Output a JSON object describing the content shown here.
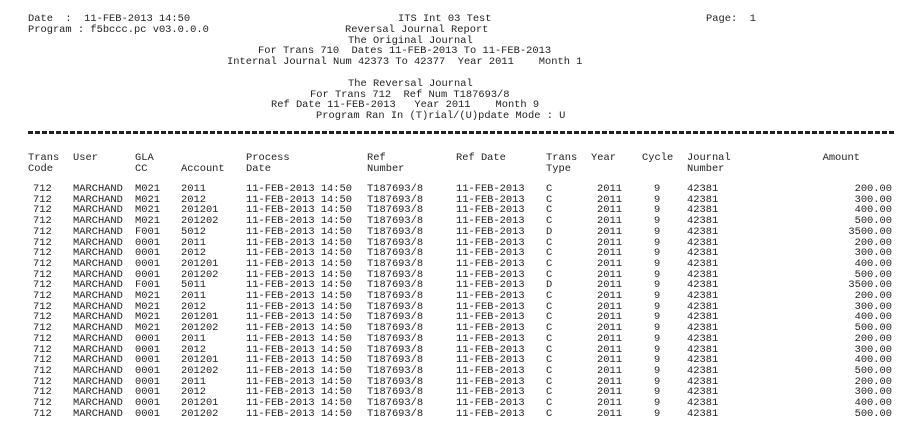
{
  "header": {
    "date": "Date  :  11-FEB-2013 14:50",
    "program": "Program : f5bccc.pc v03.0.0.0",
    "system": "ITS Int 03 Test",
    "page": "Page:  1",
    "title": "Reversal Journal Report",
    "original_heading": "The Original Journal",
    "original_trans": "For Trans 710  Dates 11-FEB-2013 To 11-FEB-2013",
    "original_internal": "Internal Journal Num 42373 To 42377  Year 2011    Month 1",
    "reversal_heading": "The Reversal Journal",
    "reversal_trans": "For Trans 712  Ref Num T187693/8",
    "reversal_refdate": "Ref Date 11-FEB-2013   Year 2011    Month 9",
    "mode": "Program Ran In (T)rial/(U)pdate Mode : U"
  },
  "columns": [
    {
      "l1": "Trans",
      "l2": "Code"
    },
    {
      "l1": "User",
      "l2": ""
    },
    {
      "l1": "GLA",
      "l2": "CC"
    },
    {
      "l1": "",
      "l2": "Account"
    },
    {
      "l1": "Process",
      "l2": "Date"
    },
    {
      "l1": "Ref",
      "l2": "Number"
    },
    {
      "l1": "Ref Date",
      "l2": ""
    },
    {
      "l1": "Trans",
      "l2": "Type"
    },
    {
      "l1": "Year",
      "l2": ""
    },
    {
      "l1": "Cycle",
      "l2": ""
    },
    {
      "l1": "Journal",
      "l2": "Number"
    },
    {
      "l1": "Amount",
      "l2": ""
    }
  ],
  "rows": [
    [
      "712",
      "MARCHAND",
      "M021",
      "2011",
      "11-FEB-2013 14:50",
      "T187693/8",
      "11-FEB-2013",
      "C",
      "2011",
      "9",
      "42381",
      "200.00"
    ],
    [
      "712",
      "MARCHAND",
      "M021",
      "2012",
      "11-FEB-2013 14:50",
      "T187693/8",
      "11-FEB-2013",
      "C",
      "2011",
      "9",
      "42381",
      "300.00"
    ],
    [
      "712",
      "MARCHAND",
      "M021",
      "201201",
      "11-FEB-2013 14:50",
      "T187693/8",
      "11-FEB-2013",
      "C",
      "2011",
      "9",
      "42381",
      "400.00"
    ],
    [
      "712",
      "MARCHAND",
      "M021",
      "201202",
      "11-FEB-2013 14:50",
      "T187693/8",
      "11-FEB-2013",
      "C",
      "2011",
      "9",
      "42381",
      "500.00"
    ],
    [
      "712",
      "MARCHAND",
      "F001",
      "5012",
      "11-FEB-2013 14:50",
      "T187693/8",
      "11-FEB-2013",
      "D",
      "2011",
      "9",
      "42381",
      "3500.00"
    ],
    [
      "712",
      "MARCHAND",
      "0001",
      "2011",
      "11-FEB-2013 14:50",
      "T187693/8",
      "11-FEB-2013",
      "C",
      "2011",
      "9",
      "42381",
      "200.00"
    ],
    [
      "712",
      "MARCHAND",
      "0001",
      "2012",
      "11-FEB-2013 14:50",
      "T187693/8",
      "11-FEB-2013",
      "C",
      "2011",
      "9",
      "42381",
      "300.00"
    ],
    [
      "712",
      "MARCHAND",
      "0001",
      "201201",
      "11-FEB-2013 14:50",
      "T187693/8",
      "11-FEB-2013",
      "C",
      "2011",
      "9",
      "42381",
      "400.00"
    ],
    [
      "712",
      "MARCHAND",
      "0001",
      "201202",
      "11-FEB-2013 14:50",
      "T187693/8",
      "11-FEB-2013",
      "C",
      "2011",
      "9",
      "42381",
      "500.00"
    ],
    [
      "712",
      "MARCHAND",
      "F001",
      "5011",
      "11-FEB-2013 14:50",
      "T187693/8",
      "11-FEB-2013",
      "D",
      "2011",
      "9",
      "42381",
      "3500.00"
    ],
    [
      "712",
      "MARCHAND",
      "M021",
      "2011",
      "11-FEB-2013 14:50",
      "T187693/8",
      "11-FEB-2013",
      "C",
      "2011",
      "9",
      "42381",
      "200.00"
    ],
    [
      "712",
      "MARCHAND",
      "M021",
      "2012",
      "11-FEB-2013 14:50",
      "T187693/8",
      "11-FEB-2013",
      "C",
      "2011",
      "9",
      "42381",
      "300.00"
    ],
    [
      "712",
      "MARCHAND",
      "M021",
      "201201",
      "11-FEB-2013 14:50",
      "T187693/8",
      "11-FEB-2013",
      "C",
      "2011",
      "9",
      "42381",
      "400.00"
    ],
    [
      "712",
      "MARCHAND",
      "M021",
      "201202",
      "11-FEB-2013 14:50",
      "T187693/8",
      "11-FEB-2013",
      "C",
      "2011",
      "9",
      "42381",
      "500.00"
    ],
    [
      "712",
      "MARCHAND",
      "0001",
      "2011",
      "11-FEB-2013 14:50",
      "T187693/8",
      "11-FEB-2013",
      "C",
      "2011",
      "9",
      "42381",
      "200.00"
    ],
    [
      "712",
      "MARCHAND",
      "0001",
      "2012",
      "11-FEB-2013 14:50",
      "T187693/8",
      "11-FEB-2013",
      "C",
      "2011",
      "9",
      "42381",
      "300.00"
    ],
    [
      "712",
      "MARCHAND",
      "0001",
      "201201",
      "11-FEB-2013 14:50",
      "T187693/8",
      "11-FEB-2013",
      "C",
      "2011",
      "9",
      "42381",
      "400.00"
    ],
    [
      "712",
      "MARCHAND",
      "0001",
      "201202",
      "11-FEB-2013 14:50",
      "T187693/8",
      "11-FEB-2013",
      "C",
      "2011",
      "9",
      "42381",
      "500.00"
    ],
    [
      "712",
      "MARCHAND",
      "0001",
      "2011",
      "11-FEB-2013 14:50",
      "T187693/8",
      "11-FEB-2013",
      "C",
      "2011",
      "9",
      "42381",
      "200.00"
    ],
    [
      "712",
      "MARCHAND",
      "0001",
      "2012",
      "11-FEB-2013 14:50",
      "T187693/8",
      "11-FEB-2013",
      "C",
      "2011",
      "9",
      "42381",
      "300.00"
    ],
    [
      "712",
      "MARCHAND",
      "0001",
      "201201",
      "11-FEB-2013 14:50",
      "T187693/8",
      "11-FEB-2013",
      "C",
      "2011",
      "9",
      "42381",
      "400.00"
    ],
    [
      "712",
      "MARCHAND",
      "0001",
      "201202",
      "11-FEB-2013 14:50",
      "T187693/8",
      "11-FEB-2013",
      "C",
      "2011",
      "9",
      "42381",
      "500.00"
    ]
  ]
}
